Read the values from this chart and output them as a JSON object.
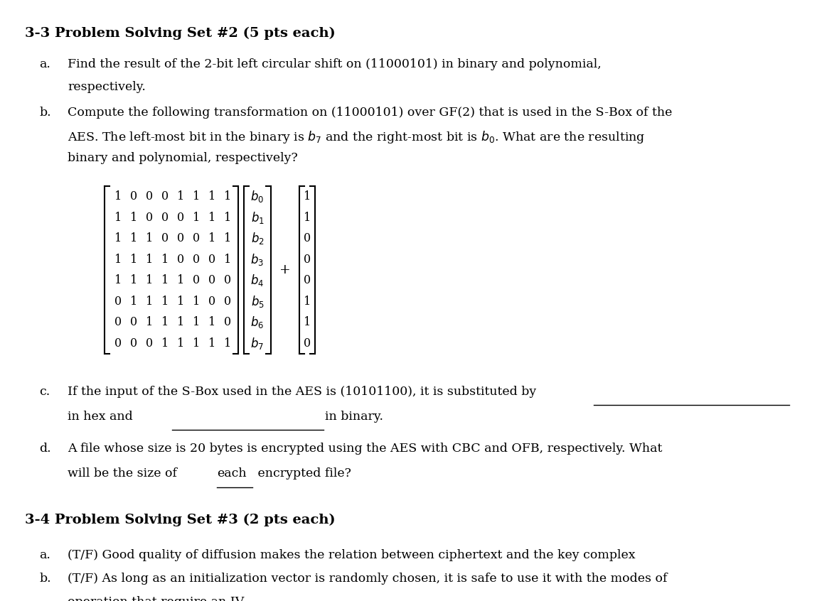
{
  "background_color": "#ffffff",
  "figsize": [
    11.49,
    8.46
  ],
  "dpi": 100,
  "title": "3-3 Problem Solving Set #2 (5 pts each)",
  "title_fs": 14,
  "body_fs": 12.5,
  "mat_fs": 11.5,
  "matrix": [
    [
      1,
      0,
      0,
      0,
      1,
      1,
      1,
      1
    ],
    [
      1,
      1,
      0,
      0,
      0,
      1,
      1,
      1
    ],
    [
      1,
      1,
      1,
      0,
      0,
      0,
      1,
      1
    ],
    [
      1,
      1,
      1,
      1,
      0,
      0,
      0,
      1
    ],
    [
      1,
      1,
      1,
      1,
      1,
      0,
      0,
      0
    ],
    [
      0,
      1,
      1,
      1,
      1,
      1,
      0,
      0
    ],
    [
      0,
      0,
      1,
      1,
      1,
      1,
      1,
      0
    ],
    [
      0,
      0,
      0,
      1,
      1,
      1,
      1,
      1
    ]
  ],
  "result_vec": [
    1,
    1,
    0,
    0,
    0,
    1,
    1,
    0
  ]
}
